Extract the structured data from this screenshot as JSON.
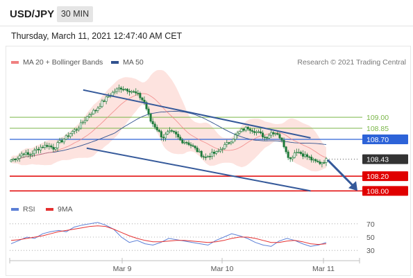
{
  "header": {
    "symbol": "USD/JPY",
    "timeframe": "30 MIN"
  },
  "timestamp": "Thursday, March 11, 2021 12:47:40 AM CET",
  "legend": {
    "ma20": "MA 20 + Bollinger Bands",
    "ma50": "MA 50",
    "credit": "Research © 2021 Trading Central",
    "rsi": "RSI",
    "ma9": "9MA"
  },
  "colors": {
    "ma20": "#f08080",
    "ma50": "#31528f",
    "bands": "#fde0dc",
    "green_level": "#7ab648",
    "blue_level": "#2d63d8",
    "red_level": "#e00000",
    "candle": "#1d7a3a",
    "channel": "#35599a",
    "rsi": "#5b7fd6",
    "rsi_ma": "#e53030"
  },
  "chart_data": {
    "type": "candlestick",
    "instrument": "USD/JPY",
    "interval": "30 MIN",
    "x_tick_labels": [
      "Mar 9",
      "Mar 10",
      "Mar 11"
    ],
    "ylim": [
      107.9,
      109.65
    ],
    "close_path": [
      108.42,
      108.45,
      108.52,
      108.48,
      108.55,
      108.6,
      108.62,
      108.58,
      108.66,
      108.72,
      108.8,
      108.85,
      108.95,
      109.05,
      109.1,
      109.2,
      109.28,
      109.35,
      109.4,
      109.38,
      109.35,
      109.3,
      109.2,
      108.95,
      108.85,
      108.72,
      108.8,
      108.78,
      108.68,
      108.66,
      108.6,
      108.52,
      108.45,
      108.5,
      108.52,
      108.6,
      108.66,
      108.75,
      108.82,
      108.86,
      108.82,
      108.78,
      108.72,
      108.8,
      108.78,
      108.62,
      108.42,
      108.55,
      108.5,
      108.46,
      108.4,
      108.38,
      108.42
    ],
    "price_levels": [
      {
        "price": 109.0,
        "label": "109.00",
        "kind": "resistance"
      },
      {
        "price": 108.85,
        "label": "108.85",
        "kind": "resistance"
      },
      {
        "price": 108.7,
        "label": "108.70",
        "kind": "pivot"
      },
      {
        "price": 108.43,
        "label": "108.43",
        "kind": "last"
      },
      {
        "price": 108.2,
        "label": "108.20",
        "kind": "support"
      },
      {
        "price": 108.0,
        "label": "108.00",
        "kind": "support"
      }
    ],
    "channel": {
      "upper": [
        [
          109.37,
          0.21
        ],
        [
          108.72,
          0.86
        ]
      ],
      "lower": [
        [
          108.58,
          0.22
        ],
        [
          108.0,
          0.86
        ]
      ]
    },
    "rsi": {
      "ticks": [
        "70",
        "50",
        "30"
      ],
      "rsi_values": [
        40,
        45,
        50,
        48,
        55,
        58,
        60,
        58,
        65,
        68,
        70,
        72,
        68,
        62,
        50,
        42,
        45,
        40,
        38,
        42,
        48,
        46,
        44,
        42,
        40,
        38,
        45,
        50,
        55,
        52,
        48,
        42,
        38,
        36,
        44,
        48,
        45,
        40,
        36,
        38,
        42
      ],
      "ma9_values": [
        45,
        46,
        48,
        50,
        52,
        55,
        58,
        60,
        62,
        64,
        66,
        67,
        66,
        62,
        57,
        52,
        48,
        45,
        43,
        43,
        44,
        45,
        45,
        44,
        43,
        42,
        43,
        45,
        48,
        50,
        50,
        48,
        45,
        42,
        42,
        44,
        45,
        43,
        40,
        39,
        40
      ]
    }
  }
}
